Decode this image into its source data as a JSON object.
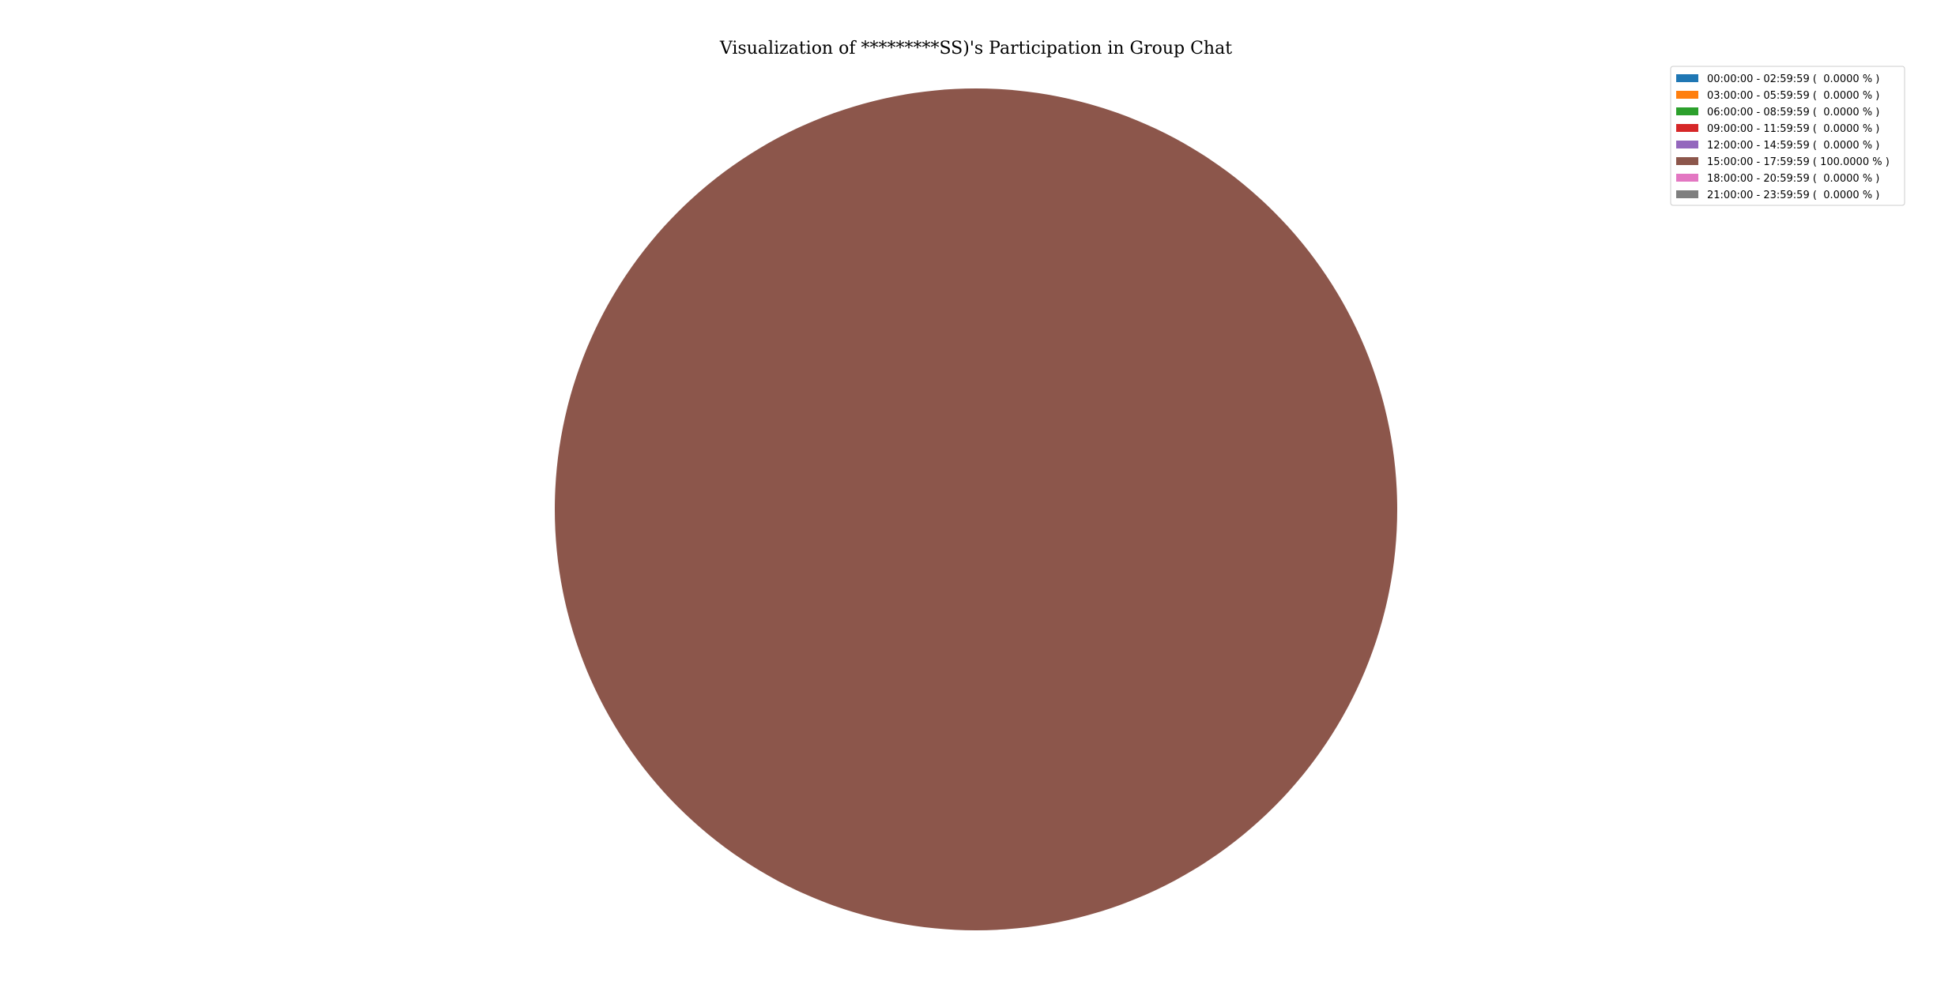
{
  "chart_data": {
    "type": "pie",
    "title": "Visualization of *********SS)'s Participation in Group Chat",
    "legend_position": "top-right",
    "slices": [
      {
        "label": "00:00:00 - 02:59:59 (  0.0000 % )",
        "value": 0,
        "color": "#1f77b4"
      },
      {
        "label": "03:00:00 - 05:59:59 (  0.0000 % )",
        "value": 0,
        "color": "#ff7f0e"
      },
      {
        "label": "06:00:00 - 08:59:59 (  0.0000 % )",
        "value": 0,
        "color": "#2ca02c"
      },
      {
        "label": "09:00:00 - 11:59:59 (  0.0000 % )",
        "value": 0,
        "color": "#d62728"
      },
      {
        "label": "12:00:00 - 14:59:59 (  0.0000 % )",
        "value": 0,
        "color": "#9467bd"
      },
      {
        "label": "15:00:00 - 17:59:59 ( 100.0000 % )",
        "value": 100,
        "color": "#8c564b"
      },
      {
        "label": "18:00:00 - 20:59:59 (  0.0000 % )",
        "value": 0,
        "color": "#e377c2"
      },
      {
        "label": "21:00:00 - 23:59:59 (  0.0000 % )",
        "value": 0,
        "color": "#7f7f7f"
      }
    ]
  }
}
